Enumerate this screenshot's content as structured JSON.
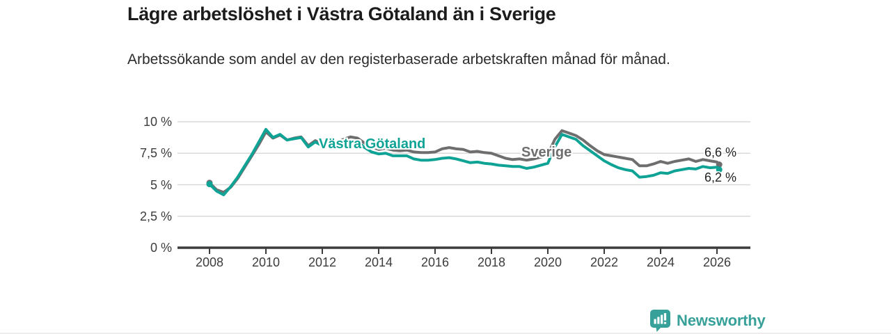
{
  "header": {
    "title": "Lägre arbetslöshet i Västra Götaland än i Sverige",
    "subtitle": "Arbetssökande som andel av den registerbaserade arbetskraften månad för månad."
  },
  "chart_data": {
    "type": "line",
    "title": "Lägre arbetslöshet i Västra Götaland än i Sverige",
    "xlabel": "",
    "ylabel": "",
    "x_unit": "decimal_year",
    "ylim": [
      0,
      10
    ],
    "xlim": [
      2008,
      2026.2
    ],
    "grid": "horizontal",
    "legend": "inline-labels-on-lines",
    "ytick_values": [
      10,
      7.5,
      5,
      2.5,
      0
    ],
    "ytick_labels": [
      "10 %",
      "7,5 %",
      "5 %",
      "2,5 %",
      "0 %"
    ],
    "xtick_values": [
      2008,
      2010,
      2012,
      2014,
      2016,
      2018,
      2020,
      2022,
      2024,
      2026
    ],
    "xtick_labels": [
      "2008",
      "2010",
      "2012",
      "2014",
      "2016",
      "2018",
      "2020",
      "2022",
      "2024",
      "2026"
    ],
    "x": [
      2008,
      2008.25,
      2008.5,
      2008.75,
      2009,
      2009.25,
      2009.5,
      2009.75,
      2010,
      2010.25,
      2010.5,
      2010.75,
      2011,
      2011.25,
      2011.5,
      2011.75,
      2012,
      2012.25,
      2012.5,
      2012.75,
      2013,
      2013.25,
      2013.5,
      2013.75,
      2014,
      2014.25,
      2014.5,
      2014.75,
      2015,
      2015.25,
      2015.5,
      2015.75,
      2016,
      2016.25,
      2016.5,
      2016.75,
      2017,
      2017.25,
      2017.5,
      2017.75,
      2018,
      2018.25,
      2018.5,
      2018.75,
      2019,
      2019.25,
      2019.5,
      2019.75,
      2020,
      2020.25,
      2020.5,
      2020.75,
      2021,
      2021.25,
      2021.5,
      2021.75,
      2022,
      2022.25,
      2022.5,
      2022.75,
      2023,
      2023.25,
      2023.5,
      2023.75,
      2024,
      2024.25,
      2024.5,
      2024.75,
      2025,
      2025.25,
      2025.5,
      2025.75,
      2026,
      2026.08
    ],
    "series": [
      {
        "name": "Sverige",
        "color": "#6e6e6e",
        "end_label": "6,6 %",
        "end_value": 6.6,
        "values": [
          5.15,
          4.6,
          4.4,
          4.8,
          5.5,
          6.4,
          7.3,
          8.2,
          9.2,
          8.7,
          8.95,
          8.55,
          8.7,
          8.8,
          8.1,
          8.5,
          8.25,
          8.4,
          8.35,
          8.6,
          8.8,
          8.7,
          8.3,
          8.0,
          7.8,
          7.9,
          7.75,
          7.7,
          7.75,
          7.6,
          7.55,
          7.55,
          7.6,
          7.85,
          7.95,
          7.85,
          7.8,
          7.6,
          7.65,
          7.55,
          7.5,
          7.3,
          7.1,
          7.0,
          7.05,
          6.95,
          7.05,
          7.2,
          7.4,
          8.6,
          9.3,
          9.1,
          8.9,
          8.55,
          8.1,
          7.7,
          7.4,
          7.3,
          7.2,
          7.1,
          7.0,
          6.5,
          6.5,
          6.65,
          6.85,
          6.7,
          6.85,
          6.95,
          7.05,
          6.85,
          7.0,
          6.9,
          6.8,
          6.6
        ]
      },
      {
        "name": "Västra Götaland",
        "color": "#0fa396",
        "end_label": "6,2 %",
        "end_value": 6.2,
        "values": [
          5.05,
          4.5,
          4.2,
          4.85,
          5.6,
          6.5,
          7.4,
          8.4,
          9.4,
          8.75,
          9.0,
          8.55,
          8.65,
          8.75,
          8.0,
          8.4,
          8.1,
          8.2,
          8.1,
          8.3,
          8.5,
          8.45,
          7.95,
          7.6,
          7.45,
          7.5,
          7.3,
          7.3,
          7.3,
          7.05,
          6.95,
          6.95,
          7.0,
          7.1,
          7.15,
          7.05,
          6.9,
          6.75,
          6.8,
          6.7,
          6.65,
          6.55,
          6.5,
          6.45,
          6.45,
          6.3,
          6.4,
          6.55,
          6.7,
          8.0,
          9.0,
          8.8,
          8.6,
          8.1,
          7.7,
          7.3,
          6.9,
          6.6,
          6.35,
          6.2,
          6.1,
          5.6,
          5.65,
          5.75,
          5.95,
          5.9,
          6.1,
          6.2,
          6.3,
          6.25,
          6.45,
          6.35,
          6.4,
          6.2
        ]
      }
    ]
  },
  "footer": {
    "brand": "Newsworthy",
    "brand_color": "#37a199",
    "brand_icon": "bar-chart-speech-bubble-icon"
  }
}
